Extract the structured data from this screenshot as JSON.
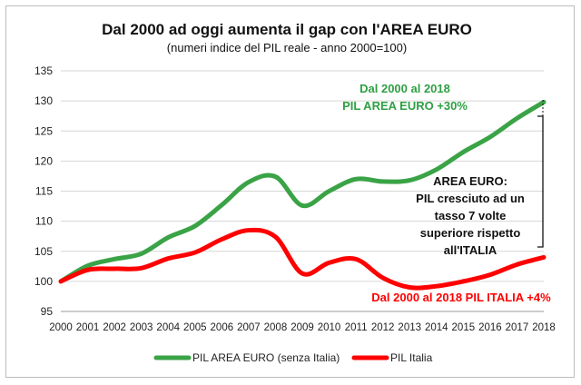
{
  "chart_data": {
    "type": "line",
    "title": "Dal 2000 ad oggi aumenta il gap con l'AREA EURO",
    "subtitle": "(numeri indice del PIL reale - anno 2000=100)",
    "x": [
      "2000",
      "2001",
      "2002",
      "2003",
      "2004",
      "2005",
      "2006",
      "2007",
      "2008",
      "2009",
      "2010",
      "2011",
      "2012",
      "2013",
      "2014",
      "2015",
      "2016",
      "2017",
      "2018"
    ],
    "ylim": [
      95,
      135
    ],
    "yticks": [
      "95",
      "100",
      "105",
      "110",
      "115",
      "120",
      "125",
      "130",
      "135"
    ],
    "grid": true,
    "series": [
      {
        "name": "PIL AREA EURO (senza Italia)",
        "color": "#3aa346",
        "values": [
          100.0,
          102.6,
          103.7,
          104.6,
          107.3,
          109.2,
          112.7,
          116.5,
          117.4,
          112.6,
          115.0,
          117.0,
          116.6,
          116.8,
          118.6,
          121.5,
          124.0,
          127.1,
          129.8
        ]
      },
      {
        "name": "PIL Italia",
        "color": "#ff0000",
        "values": [
          100.0,
          101.9,
          102.1,
          102.2,
          103.8,
          104.8,
          107.0,
          108.5,
          107.4,
          101.3,
          103.1,
          103.7,
          100.6,
          99.0,
          99.2,
          100.0,
          101.1,
          102.8,
          104.0
        ]
      }
    ],
    "annotations": {
      "green_line1": "Dal 2000 al 2018",
      "green_line2": "PIL AREA EURO +30%",
      "black_lines": [
        "AREA EURO:",
        "PIL cresciuto ad un",
        "tasso 7 volte",
        "superiore rispetto",
        "all'ITALIA"
      ],
      "red_line": "Dal 2000 al 2018 PIL ITALIA +4%"
    },
    "legend_position": "bottom"
  }
}
